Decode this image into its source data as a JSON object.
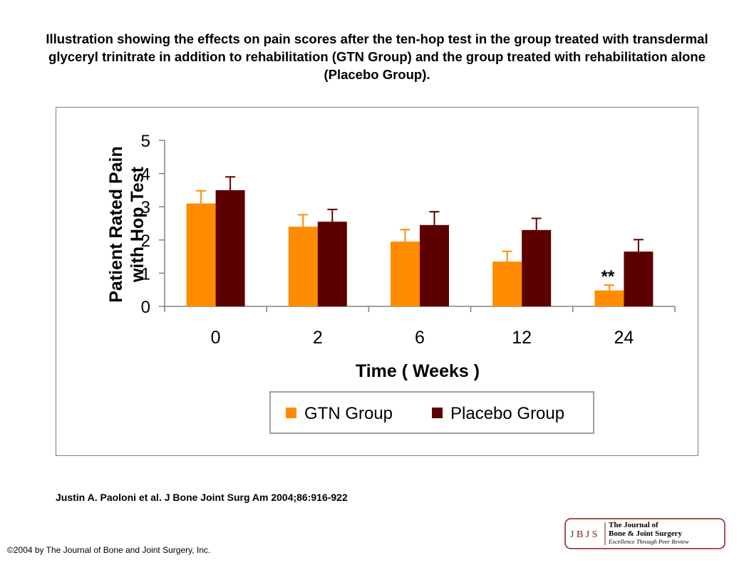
{
  "title": "Illustration showing the effects on pain scores after the ten-hop test in the group treated with transdermal glyceryl trinitrate in addition to rehabilitation (GTN Group) and the group treated with rehabilitation alone (Placebo Group).",
  "citation": "Justin A. Paoloni et al. J Bone Joint Surg Am 2004;86:916-922",
  "copyright": "©2004 by The Journal of Bone and Joint Surgery, Inc.",
  "logo": {
    "initials": "J B J S",
    "line1": "The Journal of",
    "line2": "Bone & Joint Surgery",
    "tagline": "Excellence Through Peer Review",
    "color": "#8b1a1a"
  },
  "chart_data": {
    "type": "bar",
    "xlabel": "Time ( Weeks )",
    "ylabel": [
      "Patient Rated Pain",
      "with Hop Test"
    ],
    "categories": [
      "0",
      "2",
      "6",
      "12",
      "24"
    ],
    "ylim": [
      0,
      5
    ],
    "yticks": [
      "0",
      "1",
      "2",
      "3",
      "4",
      "5"
    ],
    "series": [
      {
        "name": "GTN Group",
        "color": "#ff8c00",
        "values": [
          3.1,
          2.4,
          1.95,
          1.35,
          0.48
        ],
        "errors": [
          0.38,
          0.36,
          0.36,
          0.31,
          0.16
        ]
      },
      {
        "name": "Placebo Group",
        "color": "#5c0000",
        "values": [
          3.5,
          2.55,
          2.45,
          2.3,
          1.65
        ],
        "errors": [
          0.4,
          0.37,
          0.4,
          0.35,
          0.36
        ]
      }
    ],
    "annotations": [
      {
        "text": "**",
        "category": "24",
        "series": "GTN Group"
      }
    ],
    "grid": false,
    "legend": "bottom"
  }
}
